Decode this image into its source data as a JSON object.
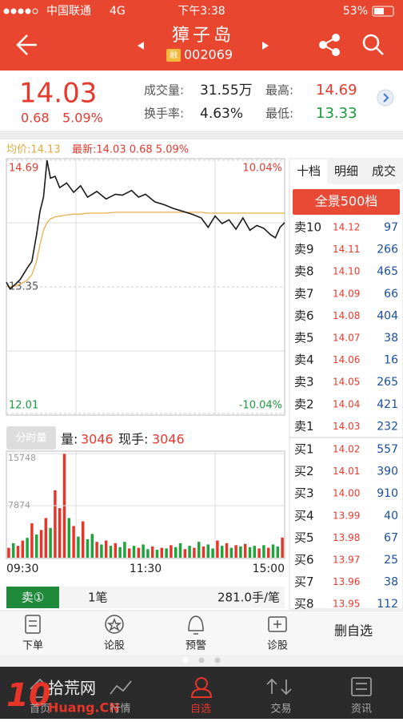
{
  "status_bar": {
    "carrier": "中国联通",
    "network": "4G",
    "time": "下午3:38",
    "battery": "53%"
  },
  "header": {
    "title": "獐子岛",
    "badge": "融",
    "code": "002069"
  },
  "quote": {
    "price": 14.03,
    "change": 0.68,
    "change_pct": "5.09%",
    "volume_label": "成交量:",
    "volume": "31.55万",
    "turnover_label": "换手率:",
    "turnover": "4.63%",
    "high_label": "最高:",
    "high": 14.69,
    "low_label": "最低:",
    "low": 13.33
  },
  "info": {
    "avg": "均价:14.13",
    "latest": "最新:14.03 0.68 5.09%"
  },
  "chart_data": [
    {
      "type": "line",
      "x": [
        0,
        3,
        8,
        12,
        18,
        22,
        26,
        29,
        32,
        35,
        38,
        42,
        46,
        52,
        58,
        64,
        70,
        78,
        86,
        94,
        100,
        108,
        114,
        120,
        128,
        136,
        144,
        152,
        160,
        168,
        174,
        180,
        186,
        192,
        198,
        204,
        210,
        216,
        222,
        228,
        232,
        236,
        240
      ],
      "xlim": [
        0,
        240
      ],
      "series": [
        {
          "color": "#1a1a1a",
          "values": [
            13.4,
            13.33,
            13.38,
            13.43,
            13.55,
            13.62,
            13.9,
            14.15,
            14.3,
            14.69,
            14.5,
            14.52,
            14.4,
            14.45,
            14.35,
            14.42,
            14.3,
            14.36,
            14.28,
            14.33,
            14.32,
            14.37,
            14.3,
            14.33,
            14.25,
            14.22,
            14.18,
            14.15,
            14.12,
            14.08,
            13.98,
            14.1,
            14.02,
            14.06,
            13.96,
            14.08,
            13.95,
            14.0,
            13.97,
            13.9,
            13.87,
            13.98,
            14.03
          ]
        },
        {
          "color": "#e8b04b",
          "values": [
            13.36,
            13.35,
            13.36,
            13.38,
            13.42,
            13.48,
            13.62,
            13.8,
            13.95,
            14.03,
            14.07,
            14.09,
            14.1,
            14.11,
            14.12,
            14.12,
            14.13,
            14.13,
            14.13,
            14.14,
            14.14,
            14.14,
            14.14,
            14.14,
            14.14,
            14.14,
            14.14,
            14.14,
            14.14,
            14.14,
            14.13,
            14.13,
            14.13,
            14.13,
            14.13,
            14.13,
            14.13,
            14.13,
            14.13,
            14.13,
            14.13,
            14.13,
            14.13
          ]
        }
      ],
      "ylim": [
        12.01,
        14.69
      ],
      "yticks": [
        14.69,
        13.35,
        12.01
      ],
      "y2lim": [
        -10.04,
        10.04
      ],
      "y2ticks": [
        {
          "value": 10.04,
          "label": "10.04%"
        },
        {
          "value": -10.04,
          "label": "-10.04%"
        }
      ]
    },
    {
      "type": "bar",
      "button": "分时量",
      "volume_label": "量:",
      "volume": 3046,
      "hand_label": "现手:",
      "hand": 3046,
      "x": [
        0,
        4,
        8,
        12,
        16,
        20,
        24,
        28,
        32,
        36,
        40,
        44,
        48,
        52,
        56,
        60,
        64,
        68,
        72,
        76,
        80,
        84,
        88,
        92,
        96,
        100,
        104,
        108,
        112,
        116,
        120,
        124,
        128,
        132,
        136,
        140,
        144,
        148,
        152,
        156,
        160,
        164,
        168,
        172,
        176,
        180,
        184,
        188,
        192,
        196,
        200,
        204,
        208,
        212,
        216,
        220,
        224,
        228,
        232,
        236
      ],
      "xlim": [
        0,
        240
      ],
      "xticks": [
        {
          "value": 0,
          "label": "09:30"
        },
        {
          "value": 120,
          "label": "11:30"
        },
        {
          "value": 240,
          "label": "15:00"
        }
      ],
      "values": [
        1500,
        2200,
        1800,
        2600,
        3000,
        5200,
        3500,
        4200,
        6000,
        4500,
        10200,
        7500,
        15748,
        6000,
        4800,
        3200,
        5500,
        2800,
        3600,
        2400,
        2000,
        2600,
        1800,
        2200,
        1600,
        2400,
        1400,
        1800,
        1500,
        2000,
        1300,
        1700,
        1200,
        1500,
        1400,
        1900,
        1600,
        2200,
        1300,
        1800,
        1500,
        2400,
        1700,
        2000,
        1400,
        2600,
        1800,
        2200,
        1500,
        1900,
        1700,
        2100,
        1600,
        1800,
        1400,
        1900,
        1500,
        2000,
        1700,
        3046
      ],
      "colors": [
        "#e8352a",
        "#1fa33a",
        "#e8352a",
        "#e8352a",
        "#1fa33a",
        "#e8352a",
        "#1fa33a",
        "#e8352a",
        "#e8352a",
        "#1fa33a",
        "#e8352a",
        "#e8352a",
        "#e8352a",
        "#1fa33a",
        "#e8352a",
        "#1fa33a",
        "#e8352a",
        "#1fa33a",
        "#1fa33a",
        "#e8352a",
        "#1fa33a",
        "#e8352a",
        "#1fa33a",
        "#e8352a",
        "#1fa33a",
        "#1fa33a",
        "#e8352a",
        "#1fa33a",
        "#e8352a",
        "#1fa33a",
        "#1fa33a",
        "#e8352a",
        "#1fa33a",
        "#e8352a",
        "#1fa33a",
        "#e8352a",
        "#1fa33a",
        "#1fa33a",
        "#e8352a",
        "#1fa33a",
        "#e8352a",
        "#1fa33a",
        "#e8352a",
        "#1fa33a",
        "#1fa33a",
        "#e8352a",
        "#1fa33a",
        "#e8352a",
        "#1fa33a",
        "#e8352a",
        "#1fa33a",
        "#e8352a",
        "#1fa33a",
        "#1fa33a",
        "#e8352a",
        "#1fa33a",
        "#e8352a",
        "#1fa33a",
        "#1fa33a",
        "#e8352a"
      ],
      "ylim": [
        0,
        15748
      ],
      "yticks": [
        15748,
        7874
      ]
    }
  ],
  "order_book": {
    "tabs": [
      "十档",
      "明细",
      "成交"
    ],
    "button": "全景500档",
    "sell": [
      {
        "label": "卖10",
        "price": "14.12",
        "volume": 97
      },
      {
        "label": "卖9",
        "price": "14.11",
        "volume": 266
      },
      {
        "label": "卖8",
        "price": "14.10",
        "volume": 465
      },
      {
        "label": "卖7",
        "price": "14.09",
        "volume": 66
      },
      {
        "label": "卖6",
        "price": "14.08",
        "volume": 404
      },
      {
        "label": "卖5",
        "price": "14.07",
        "volume": 38
      },
      {
        "label": "卖4",
        "price": "14.06",
        "volume": 16
      },
      {
        "label": "卖3",
        "price": "14.05",
        "volume": 265
      },
      {
        "label": "卖2",
        "price": "14.04",
        "volume": 421
      },
      {
        "label": "卖1",
        "price": "14.03",
        "volume": 232
      }
    ],
    "buy": [
      {
        "label": "买1",
        "price": "14.02",
        "volume": 557
      },
      {
        "label": "买2",
        "price": "14.01",
        "volume": 390
      },
      {
        "label": "买3",
        "price": "14.00",
        "volume": 910
      },
      {
        "label": "买4",
        "price": "13.99",
        "volume": 40
      },
      {
        "label": "买5",
        "price": "13.98",
        "volume": 67
      },
      {
        "label": "买6",
        "price": "13.97",
        "volume": 25
      },
      {
        "label": "买7",
        "price": "13.96",
        "volume": 38
      },
      {
        "label": "买8",
        "price": "13.95",
        "volume": 112
      }
    ]
  },
  "trade_row": {
    "side": "卖①",
    "count": "1笔",
    "avg": "281.0手/笔"
  },
  "actions": [
    "下单",
    "论股",
    "预警",
    "诊股",
    "删自选"
  ],
  "tabs": [
    "首页",
    "行情",
    "自选",
    "交易",
    "资讯"
  ],
  "watermark": {
    "logo": "10",
    "site": "拾荒网",
    "domain": "Huang.CN"
  }
}
